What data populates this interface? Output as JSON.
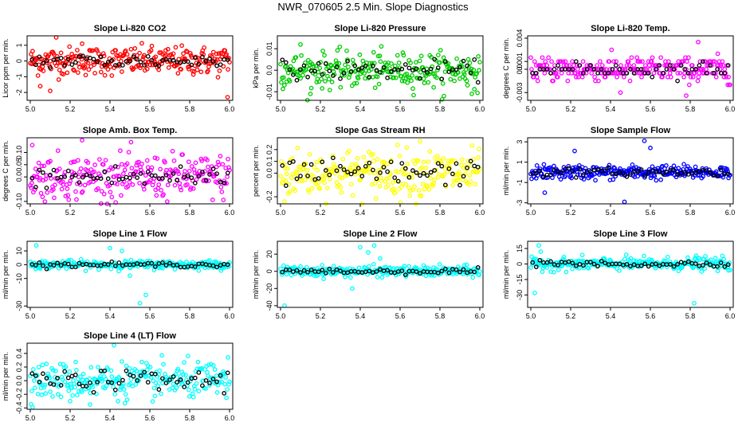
{
  "figure": {
    "title": "NWR_070605  2.5 Min. Slope Diagnostics"
  },
  "chart_data": [
    {
      "type": "scatter",
      "title": "Slope Li-820 CO2",
      "ylabel": "Licor ppm per min.",
      "color": "#ff0000",
      "xlim": [
        5.0,
        6.0
      ],
      "ylim": [
        -2.5,
        1.6
      ],
      "xticks": [
        "5.0",
        "5.2",
        "5.4",
        "5.6",
        "5.8",
        "6.0"
      ],
      "yticks": [
        -2,
        -1,
        0,
        1
      ],
      "ytick_labels": [
        "-2",
        "-1",
        "0",
        "1"
      ],
      "spread": 0.45,
      "outliers": [
        [
          5.1,
          -1.9
        ],
        [
          5.05,
          -1.6
        ],
        [
          5.13,
          1.5
        ],
        [
          5.99,
          -2.3
        ],
        [
          5.26,
          1.1
        ]
      ]
    },
    {
      "type": "scatter",
      "title": "Slope Li-820 Pressure",
      "ylabel": "kPa per min.",
      "color": "#00cc00",
      "xlim": [
        5.0,
        6.0
      ],
      "ylim": [
        -0.014,
        0.016
      ],
      "xticks": [
        "5.0",
        "5.2",
        "5.4",
        "5.6",
        "5.8",
        "6.0"
      ],
      "yticks": [
        -0.01,
        0.0,
        0.01
      ],
      "ytick_labels": [
        "-0.01",
        "0.0",
        "0.01"
      ],
      "spread": 0.004,
      "outliers": [
        [
          5.15,
          -0.011
        ],
        [
          5.82,
          -0.012
        ],
        [
          5.96,
          -0.011
        ],
        [
          5.1,
          0.012
        ]
      ]
    },
    {
      "type": "scatter",
      "title": "Slope Li-820 Temp.",
      "ylabel": "degrees C per min.",
      "color": "#ff00ff",
      "xlim": [
        5.0,
        6.0
      ],
      "ylim": [
        -0.004,
        0.0043
      ],
      "xticks": [
        "5.0",
        "5.2",
        "5.4",
        "5.6",
        "5.8",
        "6.0"
      ],
      "yticks": [
        -0.003,
        0.0,
        0.001,
        0.004
      ],
      "ytick_labels": [
        "-0.003",
        "0.0",
        "0.001",
        "0.004"
      ],
      "spread": 0.0008,
      "outliers": [
        [
          5.84,
          0.0035
        ],
        [
          5.78,
          -0.0034
        ],
        [
          5.45,
          -0.003
        ]
      ]
    },
    {
      "type": "scatter",
      "title": "Slope Amb. Box Temp.",
      "ylabel": "degrees C per min.",
      "color": "#ff00ff",
      "xlim": [
        5.0,
        6.0
      ],
      "ylim": [
        -0.11,
        0.16
      ],
      "xticks": [
        "5.0",
        "5.2",
        "5.4",
        "5.6",
        "5.8",
        "6.0"
      ],
      "yticks": [
        -0.1,
        0.0,
        0.05,
        0.1
      ],
      "ytick_labels": [
        "-0.10",
        "0.0",
        "0.05",
        "0.10"
      ],
      "spread": 0.045,
      "outliers": [
        [
          5.26,
          0.15
        ],
        [
          5.01,
          0.13
        ]
      ]
    },
    {
      "type": "scatter",
      "title": "Slope Gas Stream RH",
      "ylabel": "percent per min.",
      "color": "#ffff00",
      "xlim": [
        5.0,
        6.0
      ],
      "ylim": [
        -0.26,
        0.3
      ],
      "xticks": [
        "5.0",
        "5.2",
        "5.4",
        "5.6",
        "5.8",
        "6.0"
      ],
      "yticks": [
        -0.2,
        0.0,
        0.1,
        0.2
      ],
      "ytick_labels": [
        "-0.2",
        "0.0",
        "0.1",
        "0.2"
      ],
      "spread": 0.1,
      "outliers": [
        [
          5.7,
          0.27
        ],
        [
          5.02,
          -0.24
        ]
      ]
    },
    {
      "type": "scatter",
      "title": "Slope Sample Flow",
      "ylabel": "ml/min per min.",
      "color": "#0000ff",
      "xlim": [
        5.0,
        6.0
      ],
      "ylim": [
        -3.1,
        3.4
      ],
      "xticks": [
        "5.0",
        "5.2",
        "5.4",
        "5.6",
        "5.8",
        "6.0"
      ],
      "yticks": [
        -3,
        -1,
        1,
        3
      ],
      "ytick_labels": [
        "-3",
        "-1",
        "1",
        "3"
      ],
      "spread": 0.35,
      "outliers": [
        [
          5.57,
          3.1
        ],
        [
          5.47,
          -2.9
        ],
        [
          5.22,
          2.1
        ],
        [
          5.6,
          2.4
        ],
        [
          5.07,
          -2.0
        ]
      ]
    },
    {
      "type": "scatter",
      "title": "Slope Line 1 Flow",
      "ylabel": "ml/min per min.",
      "color": "#00ffff",
      "xlim": [
        5.0,
        6.0
      ],
      "ylim": [
        -31,
        17
      ],
      "xticks": [
        "5.0",
        "5.2",
        "5.4",
        "5.6",
        "5.8",
        "6.0"
      ],
      "yticks": [
        -30,
        -10,
        0,
        10
      ],
      "ytick_labels": [
        "-30",
        "-10",
        "0",
        "10"
      ],
      "spread": 1.5,
      "outliers": [
        [
          5.55,
          -28
        ],
        [
          5.58,
          -22
        ],
        [
          5.4,
          12
        ],
        [
          5.46,
          10
        ],
        [
          5.03,
          14
        ],
        [
          5.5,
          -8
        ]
      ]
    },
    {
      "type": "scatter",
      "title": "Slope Line 2 Flow",
      "ylabel": "ml/min per min.",
      "color": "#00ffff",
      "xlim": [
        5.0,
        6.0
      ],
      "ylim": [
        -42,
        35
      ],
      "xticks": [
        "5.0",
        "5.2",
        "5.4",
        "5.6",
        "5.8",
        "6.0"
      ],
      "yticks": [
        -40,
        -20,
        0,
        20
      ],
      "ytick_labels": [
        "-40",
        "-20",
        "0",
        "20"
      ],
      "spread": 3,
      "outliers": [
        [
          5.02,
          -40
        ],
        [
          5.4,
          28
        ],
        [
          5.44,
          22
        ],
        [
          5.47,
          30
        ],
        [
          5.5,
          15
        ],
        [
          5.36,
          -20
        ]
      ]
    },
    {
      "type": "scatter",
      "title": "Slope Line 3 Flow",
      "ylabel": "ml/min per min.",
      "color": "#00ffff",
      "xlim": [
        5.0,
        6.0
      ],
      "ylim": [
        -42,
        22
      ],
      "xticks": [
        "5.0",
        "5.2",
        "5.4",
        "5.6",
        "5.8",
        "6.0"
      ],
      "yticks": [
        -30,
        -15,
        0,
        15
      ],
      "ytick_labels": [
        "-30",
        "-15",
        "0",
        "15"
      ],
      "spread": 3,
      "outliers": [
        [
          5.82,
          -38
        ],
        [
          5.02,
          -28
        ],
        [
          5.04,
          18
        ],
        [
          5.05,
          12
        ],
        [
          5.83,
          8
        ]
      ]
    },
    {
      "type": "scatter",
      "title": "Slope Line 4 (LT) Flow",
      "ylabel": "ml/min per min.",
      "color": "#00ffff",
      "xlim": [
        5.0,
        6.0
      ],
      "ylim": [
        -0.42,
        0.55
      ],
      "xticks": [
        "5.0",
        "5.2",
        "5.4",
        "5.6",
        "5.8",
        "6.0"
      ],
      "yticks": [
        -0.4,
        -0.2,
        0.0,
        0.2,
        0.4
      ],
      "ytick_labels": [
        "-0.4",
        "-0.2",
        "0.0",
        "0.2",
        "0.4"
      ],
      "spread": 0.13,
      "outliers": [
        [
          5.42,
          0.52
        ],
        [
          5.3,
          -0.35
        ],
        [
          5.2,
          -0.3
        ]
      ]
    }
  ]
}
